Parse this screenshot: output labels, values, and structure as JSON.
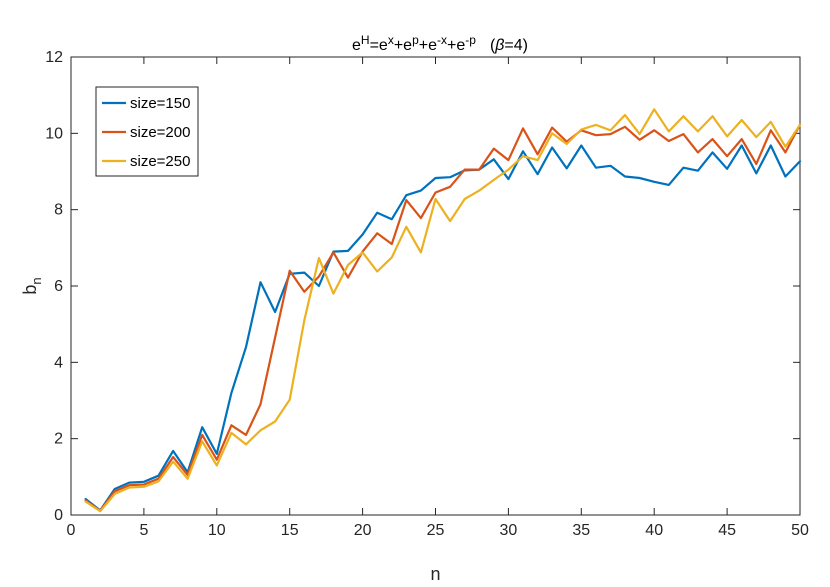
{
  "chart_data": {
    "type": "line",
    "title": {
      "parts": [
        {
          "text": "e",
          "sup": "H"
        },
        {
          "text": "=e",
          "sup": "x"
        },
        {
          "text": "+e",
          "sup": "p"
        },
        {
          "text": "+e",
          "sup": "-x"
        },
        {
          "text": "+e",
          "sup": "-p"
        }
      ],
      "suffix_open": "(",
      "suffix_symbol": "β",
      "suffix_close": "=4)"
    },
    "xlabel": "n",
    "ylabel": {
      "base": "b",
      "sub": "n"
    },
    "xlim": [
      0,
      50
    ],
    "ylim": [
      0,
      12
    ],
    "xticks": [
      0,
      5,
      10,
      15,
      20,
      25,
      30,
      35,
      40,
      45,
      50
    ],
    "yticks": [
      0,
      2,
      4,
      6,
      8,
      10,
      12
    ],
    "grid": false,
    "legend_position": "top-left",
    "x": [
      1,
      2,
      3,
      4,
      5,
      6,
      7,
      8,
      9,
      10,
      11,
      12,
      13,
      14,
      15,
      16,
      17,
      18,
      19,
      20,
      21,
      22,
      23,
      24,
      25,
      26,
      27,
      28,
      29,
      30,
      31,
      32,
      33,
      34,
      35,
      36,
      37,
      38,
      39,
      40,
      41,
      42,
      43,
      44,
      45,
      46,
      47,
      48,
      49,
      50
    ],
    "series": [
      {
        "name": "size=150",
        "color": "#0072BD",
        "values": [
          0.42,
          0.12,
          0.68,
          0.85,
          0.87,
          1.03,
          1.68,
          1.12,
          2.3,
          1.6,
          3.2,
          4.4,
          6.1,
          5.32,
          6.32,
          6.35,
          6.0,
          6.9,
          6.92,
          7.35,
          7.92,
          7.75,
          8.38,
          8.5,
          8.83,
          8.85,
          9.03,
          9.05,
          9.32,
          8.8,
          9.53,
          8.93,
          9.63,
          9.08,
          9.68,
          9.1,
          9.15,
          8.87,
          8.83,
          8.73,
          8.65,
          9.1,
          9.02,
          9.5,
          9.07,
          9.68,
          8.95,
          9.68,
          8.87,
          9.27
        ]
      },
      {
        "name": "size=200",
        "color": "#D95319",
        "values": [
          0.38,
          0.11,
          0.62,
          0.78,
          0.8,
          0.95,
          1.52,
          1.05,
          2.1,
          1.45,
          2.35,
          2.1,
          2.9,
          4.65,
          6.4,
          5.85,
          6.25,
          6.88,
          6.22,
          6.9,
          7.38,
          7.1,
          8.25,
          7.78,
          8.45,
          8.6,
          9.05,
          9.05,
          9.6,
          9.3,
          10.13,
          9.45,
          10.15,
          9.78,
          10.08,
          9.95,
          9.98,
          10.17,
          9.83,
          10.08,
          9.8,
          9.98,
          9.5,
          9.85,
          9.4,
          9.85,
          9.2,
          10.08,
          9.5,
          10.23
        ]
      },
      {
        "name": "size=250",
        "color": "#EDB120",
        "values": [
          0.35,
          0.1,
          0.55,
          0.72,
          0.74,
          0.88,
          1.4,
          0.95,
          1.93,
          1.3,
          2.15,
          1.85,
          2.22,
          2.45,
          3.02,
          5.1,
          6.73,
          5.8,
          6.55,
          6.88,
          6.38,
          6.75,
          7.55,
          6.88,
          8.28,
          7.7,
          8.28,
          8.5,
          8.78,
          9.05,
          9.4,
          9.3,
          10.0,
          9.72,
          10.1,
          10.22,
          10.08,
          10.48,
          9.98,
          10.63,
          10.05,
          10.45,
          10.05,
          10.45,
          9.92,
          10.35,
          9.9,
          10.3,
          9.65,
          10.22
        ]
      }
    ]
  }
}
